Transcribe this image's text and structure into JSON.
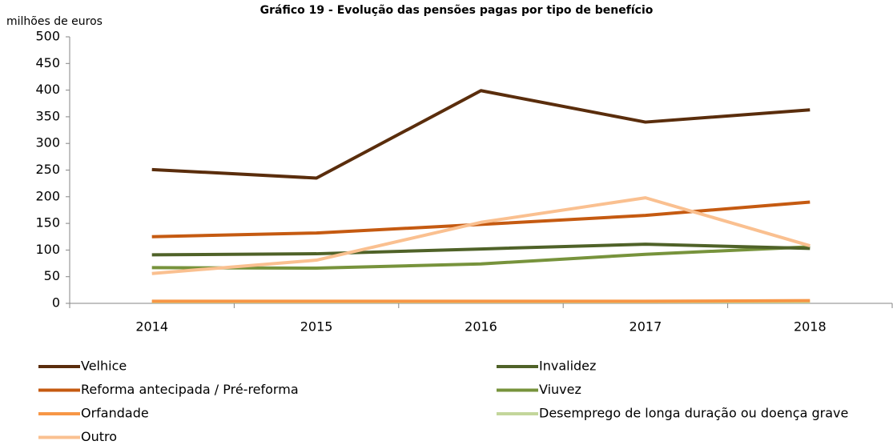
{
  "chart_data": {
    "type": "line",
    "title": "Gráfico 19 - Evolução das pensões pagas por tipo de benefício",
    "y_label": "milhões de euros",
    "categories": [
      "2014",
      "2015",
      "2016",
      "2017",
      "2018"
    ],
    "ylim": [
      0,
      500
    ],
    "yticks": [
      0,
      50,
      100,
      150,
      200,
      250,
      300,
      350,
      400,
      450,
      500
    ],
    "grid": false,
    "series": [
      {
        "name": "Velhice",
        "color": "#5a2d0c",
        "values": [
          251,
          235,
          399,
          340,
          363
        ]
      },
      {
        "name": "Invalidez",
        "color": "#4f6228",
        "values": [
          91,
          93,
          102,
          111,
          103
        ]
      },
      {
        "name": "Reforma antecipada / Pré-reforma",
        "color": "#c55a11",
        "values": [
          125,
          132,
          148,
          165,
          190
        ]
      },
      {
        "name": "Viuvez",
        "color": "#77933c",
        "values": [
          67,
          66,
          74,
          92,
          106
        ]
      },
      {
        "name": "Orfandade",
        "color": "#f79646",
        "values": [
          4,
          4,
          4,
          4,
          5
        ]
      },
      {
        "name": "Desemprego de longa duração ou doença grave",
        "color": "#c3d69b",
        "values": [
          3,
          3,
          3,
          3,
          3
        ]
      },
      {
        "name": "Outro",
        "color": "#fac090",
        "values": [
          56,
          81,
          152,
          198,
          108
        ]
      }
    ]
  }
}
